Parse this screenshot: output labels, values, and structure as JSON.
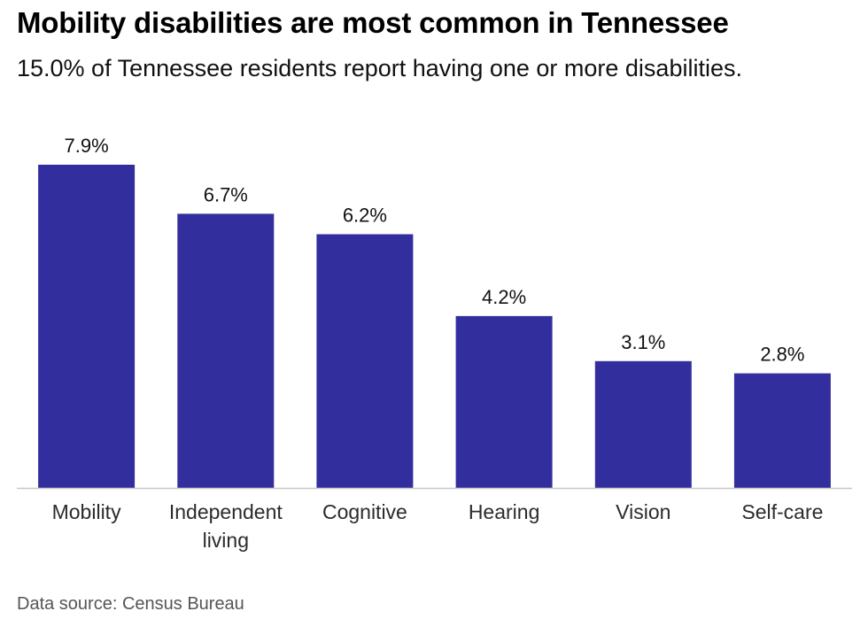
{
  "header": {
    "title": "Mobility disabilities are most common in Tennessee",
    "subtitle": "15.0% of Tennessee residents report having one or more disabilities."
  },
  "footer": {
    "source": "Data source: Census Bureau"
  },
  "colors": {
    "bar": "#332e9e",
    "baseline": "#c8c8c8"
  },
  "chart_data": {
    "type": "bar",
    "categories": [
      "Mobility",
      "Independent living",
      "Cognitive",
      "Hearing",
      "Vision",
      "Self-care"
    ],
    "category_lines": [
      [
        "Mobility"
      ],
      [
        "Independent",
        "living"
      ],
      [
        "Cognitive"
      ],
      [
        "Hearing"
      ],
      [
        "Vision"
      ],
      [
        "Self-care"
      ]
    ],
    "values": [
      7.9,
      6.7,
      6.2,
      4.2,
      3.1,
      2.8
    ],
    "value_labels": [
      "7.9%",
      "6.7%",
      "6.2%",
      "4.2%",
      "3.1%",
      "2.8%"
    ],
    "ylim": [
      0,
      7.9
    ],
    "grid": false,
    "legend": "none"
  }
}
